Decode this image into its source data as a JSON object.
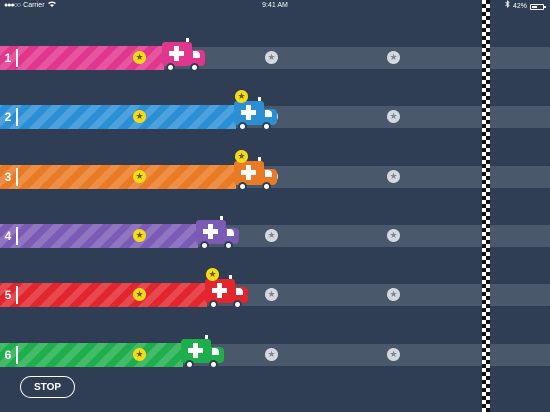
{
  "status_bar": {
    "carrier": "Carrier",
    "time": "9:41 AM",
    "battery": "42%",
    "signal_icon": "signal-dots-icon",
    "wifi_icon": "wifi-icon",
    "bluetooth_icon": "bluetooth-icon",
    "battery_icon": "battery-icon"
  },
  "lanes": [
    {
      "number": "1",
      "color": "#e0368d",
      "progress": 0.34,
      "stars": [
        "on",
        "off",
        "off"
      ],
      "bonus_star": false
    },
    {
      "number": "2",
      "color": "#2b8fd6",
      "progress": 0.49,
      "stars": [
        "on",
        "on",
        "off"
      ],
      "bonus_star": true
    },
    {
      "number": "3",
      "color": "#ea7a23",
      "progress": 0.49,
      "stars": [
        "on",
        "on",
        "off"
      ],
      "bonus_star": true
    },
    {
      "number": "4",
      "color": "#7b5bb5",
      "progress": 0.41,
      "stars": [
        "on",
        "off",
        "off"
      ],
      "bonus_star": false
    },
    {
      "number": "5",
      "color": "#e3262e",
      "progress": 0.43,
      "stars": [
        "on",
        "off",
        "off"
      ],
      "bonus_star": true
    },
    {
      "number": "6",
      "color": "#1fae4c",
      "progress": 0.38,
      "stars": [
        "on",
        "off",
        "off"
      ],
      "bonus_star": false
    }
  ],
  "controls": {
    "stop_label": "STOP"
  },
  "icons": {
    "star": "star-icon",
    "vehicle": "ambulance-icon",
    "finish": "checkered-flag-line"
  },
  "colors": {
    "background": "#2f3e54",
    "track": "#4a586c",
    "star_on": "#f5dc1a",
    "star_off": "#d5d9de"
  }
}
